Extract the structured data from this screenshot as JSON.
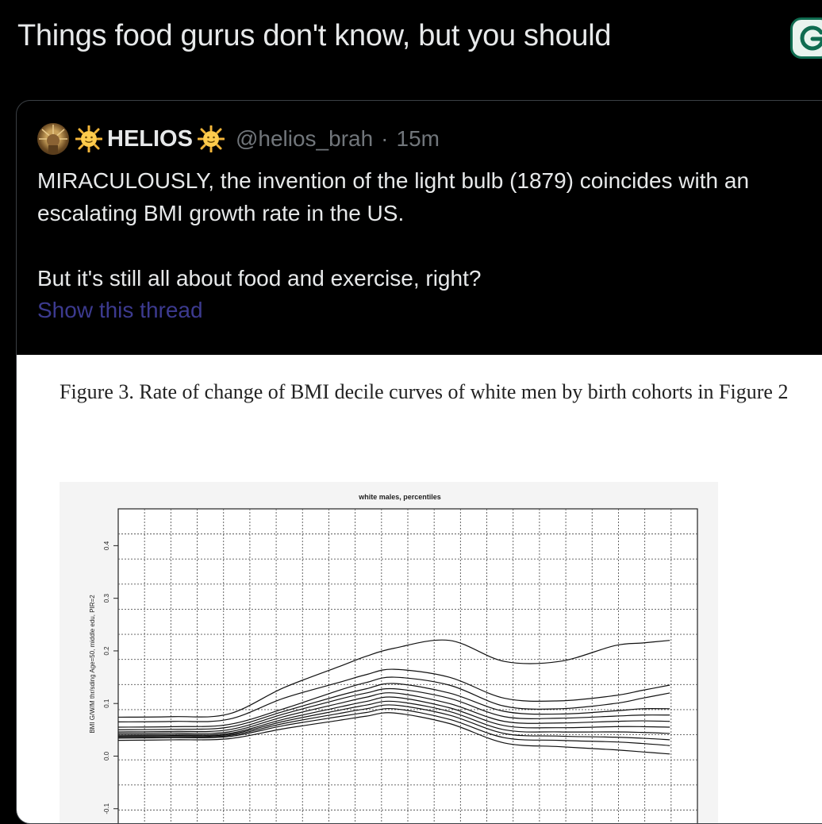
{
  "header": {
    "title": "Things food gurus don't know, but you should"
  },
  "quote_tweet": {
    "display_name": "HELIOS",
    "handle": "@helios_brah",
    "separator": "·",
    "time": "15m",
    "text_line_1": "MIRACULOUSLY, the invention of the light bulb (1879) coincides with an escalating BMI growth rate in the US.",
    "text_line_2": "But it's still all about food and exercise, right?",
    "show_thread": "Show this thread"
  },
  "figure": {
    "caption": "Figure 3. Rate of change of BMI decile curves of white men by birth cohorts in Figure 2"
  },
  "chart_data": {
    "type": "line",
    "title": "white males, percentiles",
    "ylabel": "BMI G/W/M thr/sding Age=50, middle edu, PIR=2",
    "yticks": [
      -0.1,
      0.0,
      0.1,
      0.2,
      0.3,
      0.4
    ],
    "ytick_labels": [
      "-0.1",
      "0.0",
      "0.1",
      "0.2",
      "0.3",
      "0.4"
    ],
    "ylim": [
      -0.12,
      0.47
    ],
    "xlim": [
      0,
      21
    ],
    "grid": true,
    "x": [
      0,
      2,
      4,
      6,
      8,
      9,
      10,
      12,
      14,
      16,
      18,
      19,
      20
    ],
    "series": [
      {
        "values": [
          0.065,
          0.066,
          0.07,
          0.11,
          0.14,
          0.155,
          0.165,
          0.15,
          0.11,
          0.105,
          0.115,
          0.125,
          0.135
        ]
      },
      {
        "values": [
          0.055,
          0.056,
          0.06,
          0.09,
          0.125,
          0.14,
          0.15,
          0.135,
          0.095,
          0.09,
          0.1,
          0.11,
          0.12
        ]
      },
      {
        "values": [
          0.05,
          0.051,
          0.055,
          0.085,
          0.115,
          0.128,
          0.138,
          0.12,
          0.085,
          0.08,
          0.086,
          0.09,
          0.09
        ]
      },
      {
        "values": [
          0.046,
          0.047,
          0.05,
          0.08,
          0.108,
          0.12,
          0.128,
          0.11,
          0.075,
          0.072,
          0.076,
          0.078,
          0.078
        ]
      },
      {
        "values": [
          0.043,
          0.044,
          0.046,
          0.075,
          0.1,
          0.112,
          0.12,
          0.1,
          0.066,
          0.063,
          0.066,
          0.067,
          0.066
        ]
      },
      {
        "values": [
          0.04,
          0.041,
          0.043,
          0.07,
          0.093,
          0.104,
          0.112,
          0.092,
          0.058,
          0.054,
          0.056,
          0.056,
          0.055
        ]
      },
      {
        "values": [
          0.038,
          0.039,
          0.041,
          0.066,
          0.087,
          0.097,
          0.104,
          0.085,
          0.05,
          0.046,
          0.046,
          0.045,
          0.043
        ]
      },
      {
        "values": [
          0.036,
          0.037,
          0.039,
          0.062,
          0.081,
          0.09,
          0.097,
          0.078,
          0.043,
          0.038,
          0.036,
          0.034,
          0.031
        ]
      },
      {
        "values": [
          0.034,
          0.035,
          0.037,
          0.058,
          0.075,
          0.083,
          0.09,
          0.07,
          0.035,
          0.03,
          0.027,
          0.024,
          0.02
        ]
      },
      {
        "values": [
          0.074,
          0.075,
          0.08,
          0.13,
          0.17,
          0.19,
          0.205,
          0.22,
          0.18,
          0.18,
          0.21,
          0.215,
          0.22
        ]
      },
      {
        "values": [
          0.03,
          0.031,
          0.033,
          0.052,
          0.068,
          0.076,
          0.082,
          0.062,
          0.025,
          0.018,
          0.012,
          0.008,
          0.004
        ]
      }
    ]
  }
}
